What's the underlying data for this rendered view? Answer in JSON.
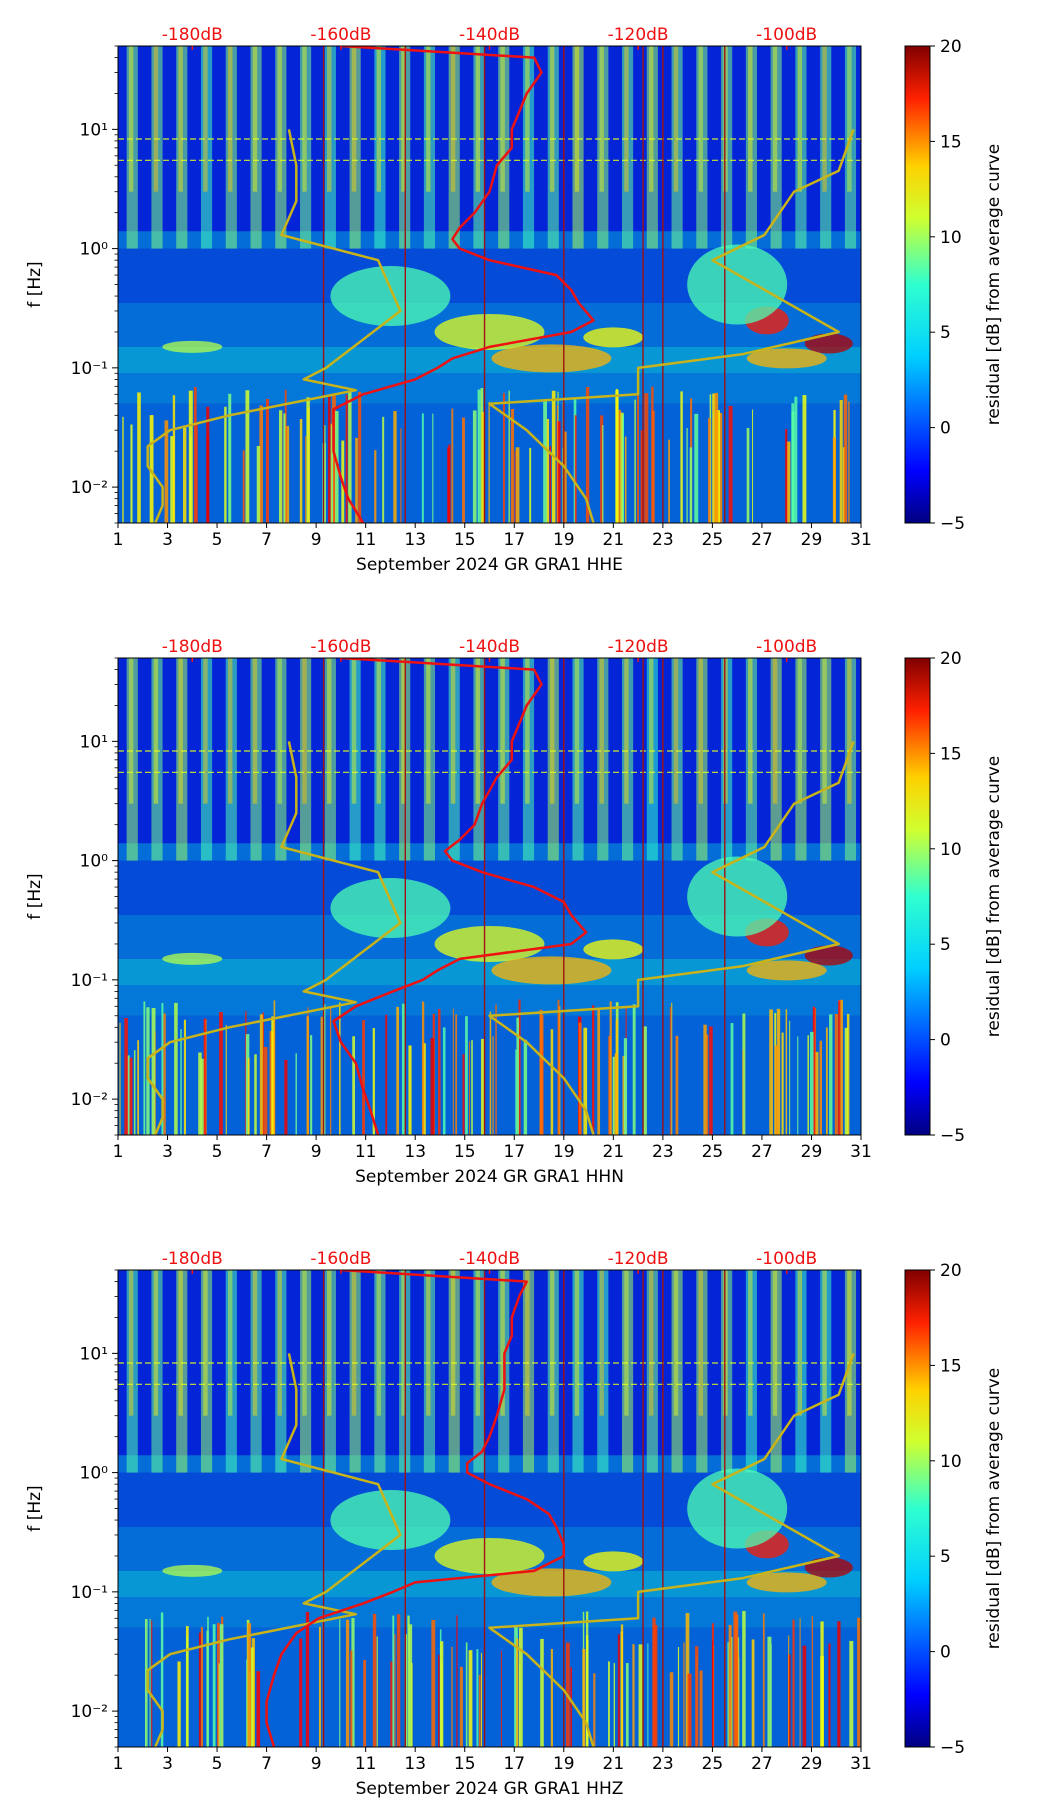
{
  "figure": {
    "title": ""
  },
  "colorbar": {
    "label": "residual [dB] from average curve",
    "ticks": [
      "20",
      "15",
      "10",
      "5",
      "0",
      "−5"
    ],
    "range": [
      -5,
      20
    ],
    "colormap": "jet"
  },
  "colors": {
    "psd_curve": "#ee1111",
    "noise_model": "#c8b41a",
    "db_labels": "#ee1111",
    "event_lines": "#a01010"
  },
  "chart_data": [
    {
      "type": "heatmap",
      "xlabel": "September 2024 GR GRA1  HHE",
      "ylabel": "f [Hz]",
      "xticks": [
        "1",
        "3",
        "5",
        "7",
        "9",
        "11",
        "13",
        "15",
        "17",
        "19",
        "21",
        "23",
        "25",
        "27",
        "29",
        "31"
      ],
      "xlim": [
        1,
        31
      ],
      "yticks": [
        "10¹",
        "10⁰",
        "10⁻¹",
        "10⁻²"
      ],
      "ylim": [
        0.005,
        50
      ],
      "top_axis_labels": [
        "-180dB",
        "-160dB",
        "-140dB",
        "-120dB",
        "-100dB"
      ],
      "top_axis_db": [
        -180,
        -160,
        -140,
        -120,
        -100
      ],
      "db_range": [
        -190,
        -90
      ],
      "event_days": [
        9.3,
        12.6,
        15.8,
        19.0,
        22.2,
        23.0,
        25.5
      ],
      "noise_model_low": {
        "f": [
          10,
          5,
          2.5,
          1.3,
          0.8,
          0.3,
          0.1,
          0.08,
          0.065,
          0.04,
          0.03,
          0.022,
          0.015,
          0.01,
          0.007,
          0.005
        ],
        "db": [
          -167,
          -166,
          -166,
          -168,
          -155,
          -152,
          -162,
          -165,
          -158,
          -175,
          -183,
          -186,
          -186,
          -184,
          -184,
          -185
        ]
      },
      "noise_model_high": {
        "f": [
          10,
          4.5,
          3,
          1.3,
          0.8,
          0.2,
          0.13,
          0.1,
          0.06,
          0.05,
          0.03,
          0.015,
          0.008,
          0.005
        ],
        "db": [
          -91,
          -93,
          -99,
          -103,
          -110,
          -93,
          -106,
          -120,
          -120,
          -140,
          -135,
          -130,
          -127,
          -126
        ]
      },
      "psd_curve": {
        "f": [
          50,
          40,
          30,
          20,
          14,
          10,
          7,
          5,
          3,
          2,
          1.5,
          1.2,
          1.0,
          0.8,
          0.6,
          0.45,
          0.35,
          0.25,
          0.2,
          0.15,
          0.12,
          0.1,
          0.08,
          0.06,
          0.045,
          0.03,
          0.02,
          0.012,
          0.008,
          0.005
        ],
        "db": [
          -160,
          -134,
          -133,
          -135,
          -136,
          -137,
          -137,
          -139,
          -140,
          -142,
          -144,
          -145,
          -144,
          -140,
          -131,
          -129,
          -128,
          -126,
          -129,
          -140,
          -145,
          -147,
          -150,
          -157,
          -161,
          -161,
          -161,
          -160,
          -159,
          -157
        ]
      }
    },
    {
      "type": "heatmap",
      "xlabel": "September 2024 GR GRA1  HHN",
      "ylabel": "f [Hz]",
      "xticks": [
        "1",
        "3",
        "5",
        "7",
        "9",
        "11",
        "13",
        "15",
        "17",
        "19",
        "21",
        "23",
        "25",
        "27",
        "29",
        "31"
      ],
      "xlim": [
        1,
        31
      ],
      "yticks": [
        "10¹",
        "10⁰",
        "10⁻¹",
        "10⁻²"
      ],
      "ylim": [
        0.005,
        50
      ],
      "top_axis_labels": [
        "-180dB",
        "-160dB",
        "-140dB",
        "-120dB",
        "-100dB"
      ],
      "top_axis_db": [
        -180,
        -160,
        -140,
        -120,
        -100
      ],
      "db_range": [
        -190,
        -90
      ],
      "event_days": [
        9.3,
        12.6,
        15.8,
        19.0,
        22.2,
        23.0,
        25.5
      ],
      "noise_model_low": {
        "f": [
          10,
          5,
          2.5,
          1.3,
          0.8,
          0.3,
          0.1,
          0.08,
          0.065,
          0.04,
          0.03,
          0.022,
          0.015,
          0.01,
          0.007,
          0.005
        ],
        "db": [
          -167,
          -166,
          -166,
          -168,
          -155,
          -152,
          -162,
          -165,
          -158,
          -175,
          -183,
          -186,
          -186,
          -184,
          -184,
          -185
        ]
      },
      "noise_model_high": {
        "f": [
          10,
          4.5,
          3,
          1.3,
          0.8,
          0.2,
          0.13,
          0.1,
          0.06,
          0.05,
          0.03,
          0.015,
          0.008,
          0.005
        ],
        "db": [
          -91,
          -93,
          -99,
          -103,
          -110,
          -93,
          -106,
          -120,
          -120,
          -140,
          -135,
          -130,
          -127,
          -126
        ]
      },
      "psd_curve": {
        "f": [
          50,
          40,
          30,
          20,
          14,
          10,
          7,
          5,
          3,
          2,
          1.5,
          1.2,
          1.0,
          0.8,
          0.6,
          0.45,
          0.35,
          0.25,
          0.2,
          0.15,
          0.12,
          0.1,
          0.08,
          0.06,
          0.045,
          0.03,
          0.02,
          0.012,
          0.008,
          0.005
        ],
        "db": [
          -160,
          -134,
          -133,
          -135,
          -136,
          -137,
          -137,
          -139,
          -141,
          -142,
          -144,
          -146,
          -145,
          -141,
          -134,
          -130,
          -129,
          -127,
          -129,
          -144,
          -147,
          -149,
          -153,
          -158,
          -161,
          -160,
          -158,
          -157,
          -156,
          -155
        ]
      }
    },
    {
      "type": "heatmap",
      "xlabel": "September 2024 GR GRA1  HHZ",
      "ylabel": "f [Hz]",
      "xticks": [
        "1",
        "3",
        "5",
        "7",
        "9",
        "11",
        "13",
        "15",
        "17",
        "19",
        "21",
        "23",
        "25",
        "27",
        "29",
        "31"
      ],
      "xlim": [
        1,
        31
      ],
      "yticks": [
        "10¹",
        "10⁰",
        "10⁻¹",
        "10⁻²"
      ],
      "ylim": [
        0.005,
        50
      ],
      "top_axis_labels": [
        "-180dB",
        "-160dB",
        "-140dB",
        "-120dB",
        "-100dB"
      ],
      "top_axis_db": [
        -180,
        -160,
        -140,
        -120,
        -100
      ],
      "db_range": [
        -190,
        -90
      ],
      "event_days": [
        9.3,
        12.6,
        15.8,
        19.0,
        22.2,
        23.0,
        25.5
      ],
      "noise_model_low": {
        "f": [
          10,
          5,
          2.5,
          1.3,
          0.8,
          0.3,
          0.1,
          0.08,
          0.065,
          0.04,
          0.03,
          0.022,
          0.015,
          0.01,
          0.007,
          0.005
        ],
        "db": [
          -167,
          -166,
          -166,
          -168,
          -155,
          -152,
          -162,
          -165,
          -158,
          -175,
          -183,
          -186,
          -186,
          -184,
          -184,
          -185
        ]
      },
      "noise_model_high": {
        "f": [
          10,
          4.5,
          3,
          1.3,
          0.8,
          0.2,
          0.13,
          0.1,
          0.06,
          0.05,
          0.03,
          0.015,
          0.008,
          0.005
        ],
        "db": [
          -91,
          -93,
          -99,
          -103,
          -110,
          -93,
          -106,
          -120,
          -120,
          -140,
          -135,
          -130,
          -127,
          -126
        ]
      },
      "psd_curve": {
        "f": [
          50,
          40,
          30,
          20,
          14,
          10,
          7,
          5,
          3,
          2,
          1.5,
          1.2,
          1.0,
          0.8,
          0.6,
          0.45,
          0.35,
          0.25,
          0.2,
          0.15,
          0.12,
          0.1,
          0.08,
          0.06,
          0.045,
          0.03,
          0.02,
          0.012,
          0.008,
          0.005
        ],
        "db": [
          -160,
          -135,
          -136,
          -137,
          -137,
          -138,
          -138,
          -138,
          -139,
          -140,
          -141,
          -143,
          -143,
          -140,
          -135,
          -132,
          -131,
          -130,
          -130,
          -134,
          -150,
          -153,
          -157,
          -163,
          -166,
          -168,
          -169,
          -170,
          -170,
          -169
        ]
      }
    }
  ]
}
